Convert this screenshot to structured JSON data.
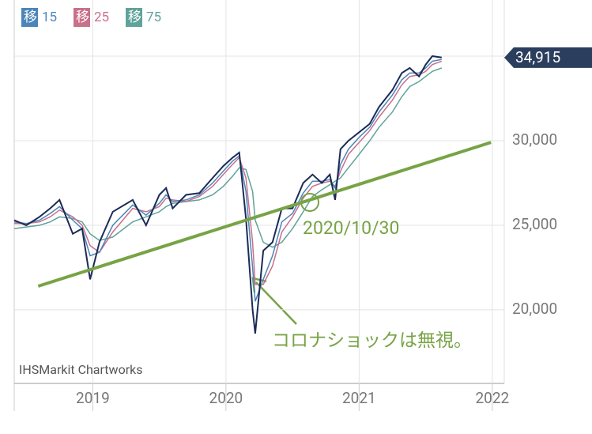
{
  "chart_data": {
    "type": "line",
    "x": [
      2018.41,
      2018.5,
      2018.6,
      2018.68,
      2018.75,
      2018.85,
      2018.92,
      2018.98,
      2019.05,
      2019.15,
      2019.3,
      2019.4,
      2019.5,
      2019.55,
      2019.6,
      2019.7,
      2019.8,
      2019.9,
      2019.98,
      2020.05,
      2020.1,
      2020.15,
      2020.2,
      2020.22,
      2020.28,
      2020.35,
      2020.42,
      2020.5,
      2020.58,
      2020.65,
      2020.72,
      2020.78,
      2020.82,
      2020.86,
      2020.92,
      2021.0,
      2021.08,
      2021.15,
      2021.25,
      2021.32,
      2021.38,
      2021.45,
      2021.5,
      2021.55,
      2021.62
    ],
    "price": {
      "color": "#1c2b57",
      "values": [
        25300,
        25000,
        25500,
        26000,
        26500,
        24500,
        24800,
        21800,
        24000,
        25800,
        26500,
        25000,
        26800,
        27200,
        26000,
        26800,
        26900,
        27800,
        28500,
        29000,
        29300,
        25400,
        20000,
        18600,
        23500,
        24000,
        26000,
        26000,
        27500,
        28000,
        27500,
        28000,
        26500,
        29500,
        30000,
        30500,
        31000,
        32000,
        33000,
        34000,
        34300,
        33800,
        34500,
        35000,
        34915
      ]
    },
    "series": [
      {
        "name": "移 15",
        "color": "#4c86b8",
        "values": [
          25200,
          25100,
          25300,
          25700,
          26100,
          25300,
          24800,
          23200,
          23400,
          25000,
          26200,
          25600,
          26300,
          26800,
          26400,
          26500,
          26800,
          27500,
          28200,
          28800,
          29100,
          27000,
          22500,
          20500,
          21800,
          23200,
          25200,
          25700,
          26900,
          27600,
          27600,
          27700,
          27200,
          28600,
          29500,
          30200,
          30800,
          31700,
          32700,
          33600,
          34000,
          34000,
          34300,
          34700,
          34800
        ]
      },
      {
        "name": "移 25",
        "color": "#c9708a",
        "values": [
          25100,
          25100,
          25200,
          25500,
          25900,
          25500,
          25000,
          23800,
          23400,
          24600,
          26000,
          25800,
          26100,
          26600,
          26500,
          26400,
          26700,
          27300,
          28000,
          28600,
          29000,
          27800,
          24000,
          21500,
          21500,
          22600,
          24600,
          25500,
          26600,
          27300,
          27500,
          27600,
          27300,
          28200,
          29200,
          29900,
          30600,
          31400,
          32400,
          33300,
          33800,
          33900,
          34100,
          34500,
          34700
        ]
      },
      {
        "name": "移 75",
        "color": "#5fa39a",
        "values": [
          24800,
          24900,
          25000,
          25200,
          25500,
          25400,
          25200,
          24500,
          24100,
          24300,
          25200,
          25500,
          25800,
          26100,
          26300,
          26400,
          26500,
          26800,
          27300,
          27900,
          28400,
          28300,
          27000,
          25300,
          24000,
          23700,
          24000,
          24800,
          25800,
          26700,
          27100,
          27400,
          27600,
          27800,
          28400,
          29200,
          30000,
          30800,
          31700,
          32600,
          33200,
          33500,
          33800,
          34100,
          34300
        ]
      }
    ],
    "trendline": {
      "color": "#77a345",
      "x": [
        2018.59,
        2021.99
      ],
      "values": [
        21400,
        29900
      ]
    },
    "annotations": [
      {
        "text": "2020/10/30",
        "x": 2020.63,
        "y": 26355
      },
      {
        "text": "コロナショックは無視。"
      }
    ],
    "last_price": {
      "value": 34915,
      "label": "34,915"
    },
    "watermark": "IHSMarkit Chartworks",
    "xlim": [
      2018.41,
      2022.09
    ],
    "xticks": [
      2019,
      2020,
      2021,
      2022
    ],
    "ylim": [
      15650,
      38320
    ],
    "yticks": [
      {
        "value": 20000,
        "label": "20,000"
      },
      {
        "value": 25000,
        "label": "25,000"
      },
      {
        "value": 30000,
        "label": "30,000"
      },
      {
        "value": 35000,
        "label": null
      }
    ],
    "grid": true
  }
}
